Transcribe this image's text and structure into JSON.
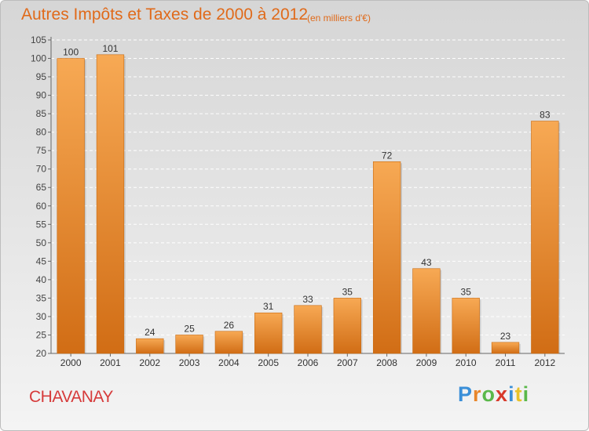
{
  "header": {
    "title": "Autres Impôts et Taxes de 2000 à 2012",
    "subtitle": "(en milliers d'€)"
  },
  "footer": {
    "commune": "CHAVANAY",
    "brand": "Proxiti",
    "brand_letters": [
      "P",
      "r",
      "o",
      "x",
      "i",
      "t",
      "i"
    ],
    "brand_colors": [
      "#3a8fd8",
      "#e8862a",
      "#5ab84a",
      "#d8392a",
      "#3a8fd8",
      "#e8c22a",
      "#5ab84a"
    ]
  },
  "colors": {
    "bar_light": "#f7a954",
    "bar_dark": "#d16d15",
    "title": "#e06a1a",
    "commune": "#d63a3a",
    "grid": "#ffffff"
  },
  "chart_data": {
    "type": "bar",
    "title": "Autres Impôts et Taxes de 2000 à 2012",
    "subtitle": "(en milliers d'€)",
    "categories": [
      "2000",
      "2001",
      "2002",
      "2003",
      "2004",
      "2005",
      "2006",
      "2007",
      "2008",
      "2009",
      "2010",
      "2011",
      "2012"
    ],
    "values": [
      100,
      101,
      24,
      25,
      26,
      31,
      33,
      35,
      72,
      43,
      35,
      23,
      83
    ],
    "ylim": [
      20,
      105
    ],
    "yticks": [
      20,
      25,
      30,
      35,
      40,
      45,
      50,
      55,
      60,
      65,
      70,
      75,
      80,
      85,
      90,
      95,
      100,
      105
    ],
    "xlabel": "",
    "ylabel": "",
    "grid": true
  }
}
